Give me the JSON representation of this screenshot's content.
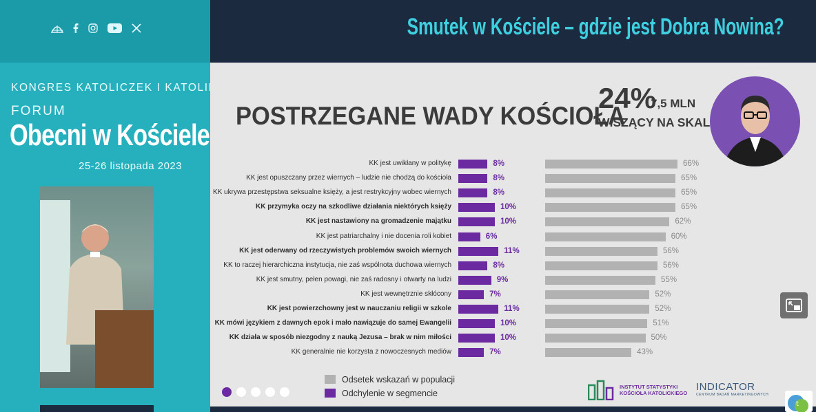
{
  "header": {
    "title": "Smutek w Kościele – gdzie jest Dobra Nowina?"
  },
  "social": {
    "icons": [
      "globe-icon",
      "facebook-icon",
      "instagram-icon",
      "youtube-icon",
      "x-icon"
    ]
  },
  "event": {
    "kongres": "KONGRES KATOLICZEK I KATOLIKÓW",
    "forum": "FORUM",
    "name": "Obecni w Kościele",
    "dates": "25-26 listopada 2023"
  },
  "slide": {
    "title": "POSTRZEGANE WADY KOŚCIOŁA",
    "percent": "24%",
    "mln": "7,5 MLN",
    "scale_label": "WISZĄCY NA SKALE",
    "logo_institute": "INSTYTUT STATYSTYKI KOŚCIOŁA KATOLICKIEGO",
    "logo_indicator": "INDICATOR",
    "logo_indicator_sub": "CENTRUM BADAŃ MARKETINGOWYCH",
    "active_slide": 1,
    "slide_count": 5
  },
  "chart_data": {
    "type": "bar",
    "title": "POSTRZEGANE WADY KOŚCIOŁA",
    "categories": [
      "KK jest uwikłany w politykę",
      "KK jest opuszczany przez wiernych – ludzie nie chodzą do kościoła",
      "KK ukrywa przestępstwa seksualne księży, a jest restrykcyjny wobec wiernych",
      "KK przymyka oczy na szkodliwe działania niektórych księży",
      "KK jest nastawiony na gromadzenie majątku",
      "KK jest patriarchalny i nie docenia roli  kobiet",
      "KK jest oderwany od rzeczywistych problemów swoich wiernych",
      "KK to raczej hierarchiczna instytucja, nie zaś wspólnota duchowa wiernych",
      "KK jest smutny, pełen powagi, nie zaś radosny i otwarty na ludzi",
      "KK jest wewnętrznie skłócony",
      "KK jest powierzchowny  jest w nauczaniu religii w szkole",
      "KK mówi językiem z dawnych epok i mało nawiązuje do samej Ewangelii",
      "KK działa w sposób niezgodny z nauką Jezusa – brak w nim miłości",
      "KK generalnie nie korzysta z nowoczesnych mediów"
    ],
    "bold": [
      false,
      false,
      false,
      true,
      true,
      false,
      true,
      false,
      false,
      false,
      true,
      true,
      true,
      false
    ],
    "series": [
      {
        "name": "Odchylenie w segmencie",
        "color": "#6b2aa0",
        "values": [
          8,
          8,
          8,
          10,
          10,
          6,
          11,
          8,
          9,
          7,
          11,
          10,
          10,
          7
        ],
        "labels": [
          "8%",
          "8%",
          "8%",
          "10%",
          "10%",
          "6%",
          "11%",
          "8%",
          "9%",
          "7%",
          "11%",
          "10%",
          "10%",
          "7%"
        ]
      },
      {
        "name": "Odsetek wskazań w populacji",
        "color": "#b2b2b2",
        "values": [
          66,
          65,
          65,
          65,
          62,
          60,
          56,
          56,
          55,
          52,
          52,
          51,
          50,
          43
        ],
        "labels": [
          "66%",
          "65%",
          "65%",
          "65%",
          "62%",
          "60%",
          "56%",
          "56%",
          "55%",
          "52%",
          "52%",
          "51%",
          "50%",
          "43%"
        ]
      }
    ],
    "legend": [
      "Odsetek wskazań w populacji",
      "Odchylenie w segmencie"
    ]
  }
}
